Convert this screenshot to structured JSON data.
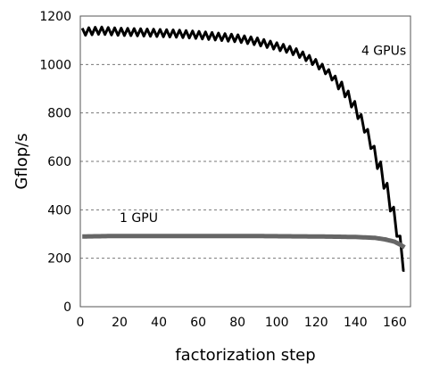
{
  "chart_data": {
    "type": "line",
    "title": "",
    "xlabel": "factorization step",
    "ylabel": "Gflop/s",
    "xlim": [
      0,
      168
    ],
    "ylim": [
      0,
      1200
    ],
    "x_ticks": [
      0,
      20,
      40,
      60,
      80,
      100,
      120,
      140,
      160
    ],
    "y_ticks": [
      0,
      200,
      400,
      600,
      800,
      1000,
      1200
    ],
    "grid": "horizontal dashed",
    "legend": "none",
    "series": [
      {
        "name": "4 GPUs",
        "color": "#000000",
        "x": [
          1,
          10,
          20,
          30,
          40,
          50,
          60,
          70,
          80,
          90,
          100,
          105,
          110,
          115,
          120,
          125,
          130,
          135,
          140,
          145,
          150,
          153,
          156,
          158,
          160,
          162,
          164,
          165
        ],
        "values": [
          1135,
          1140,
          1135,
          1133,
          1130,
          1127,
          1122,
          1115,
          1108,
          1095,
          1075,
          1065,
          1050,
          1030,
          1005,
          975,
          935,
          885,
          820,
          735,
          630,
          560,
          480,
          420,
          360,
          290,
          200,
          150
        ],
        "oscillation_amplitude": 15,
        "step_period": 3.3
      },
      {
        "name": "1 GPU",
        "color": "#666666",
        "x": [
          1,
          20,
          40,
          60,
          80,
          100,
          120,
          140,
          150,
          155,
          160,
          163,
          165
        ],
        "values": [
          290,
          292,
          292,
          292,
          292,
          291,
          290,
          288,
          284,
          278,
          268,
          255,
          245
        ]
      }
    ],
    "annotations": [
      {
        "text": "4 GPUs",
        "x": 143,
        "y": 1040
      },
      {
        "text": "1 GPU",
        "x": 20,
        "y": 350
      }
    ]
  }
}
